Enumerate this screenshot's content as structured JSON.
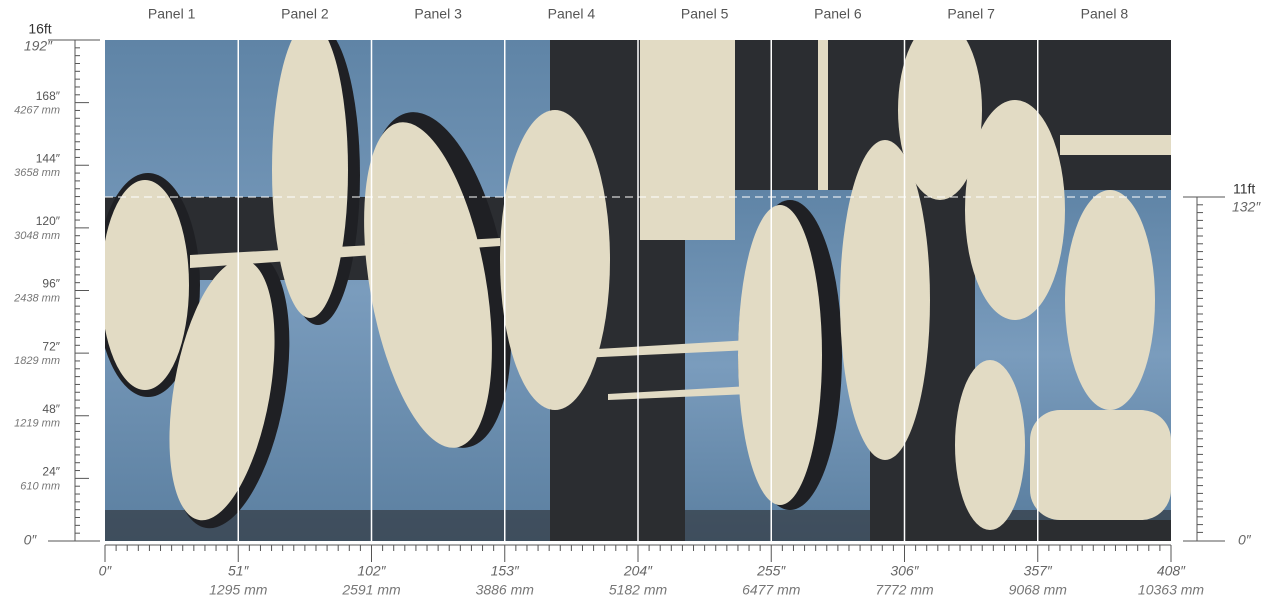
{
  "panels": [
    "Panel 1",
    "Panel 2",
    "Panel 3",
    "Panel 4",
    "Panel 5",
    "Panel 6",
    "Panel 7",
    "Panel 8"
  ],
  "left_ruler": {
    "top": "16ft",
    "top_inches": "192″",
    "marks": [
      {
        "inches": "168″",
        "mm": "4267 mm"
      },
      {
        "inches": "144″",
        "mm": "3658 mm"
      },
      {
        "inches": "120″",
        "mm": "3048 mm"
      },
      {
        "inches": "96″",
        "mm": "2438 mm"
      },
      {
        "inches": "72″",
        "mm": "1829 mm"
      },
      {
        "inches": "48″",
        "mm": "1219 mm"
      },
      {
        "inches": "24″",
        "mm": "610 mm"
      }
    ],
    "bottom": "0″"
  },
  "bottom_ruler": {
    "start": "0″",
    "marks": [
      {
        "inches": "51″",
        "mm": "1295 mm"
      },
      {
        "inches": "102″",
        "mm": "2591 mm"
      },
      {
        "inches": "153″",
        "mm": "3886 mm"
      },
      {
        "inches": "204″",
        "mm": "5182 mm"
      },
      {
        "inches": "255″",
        "mm": "6477 mm"
      },
      {
        "inches": "306″",
        "mm": "7772 mm"
      },
      {
        "inches": "357″",
        "mm": "9068 mm"
      },
      {
        "inches": "408″",
        "mm": "10363 mm"
      }
    ]
  },
  "right_ruler": {
    "top": "11ft",
    "top_inches": "132″",
    "bottom": "0″"
  }
}
